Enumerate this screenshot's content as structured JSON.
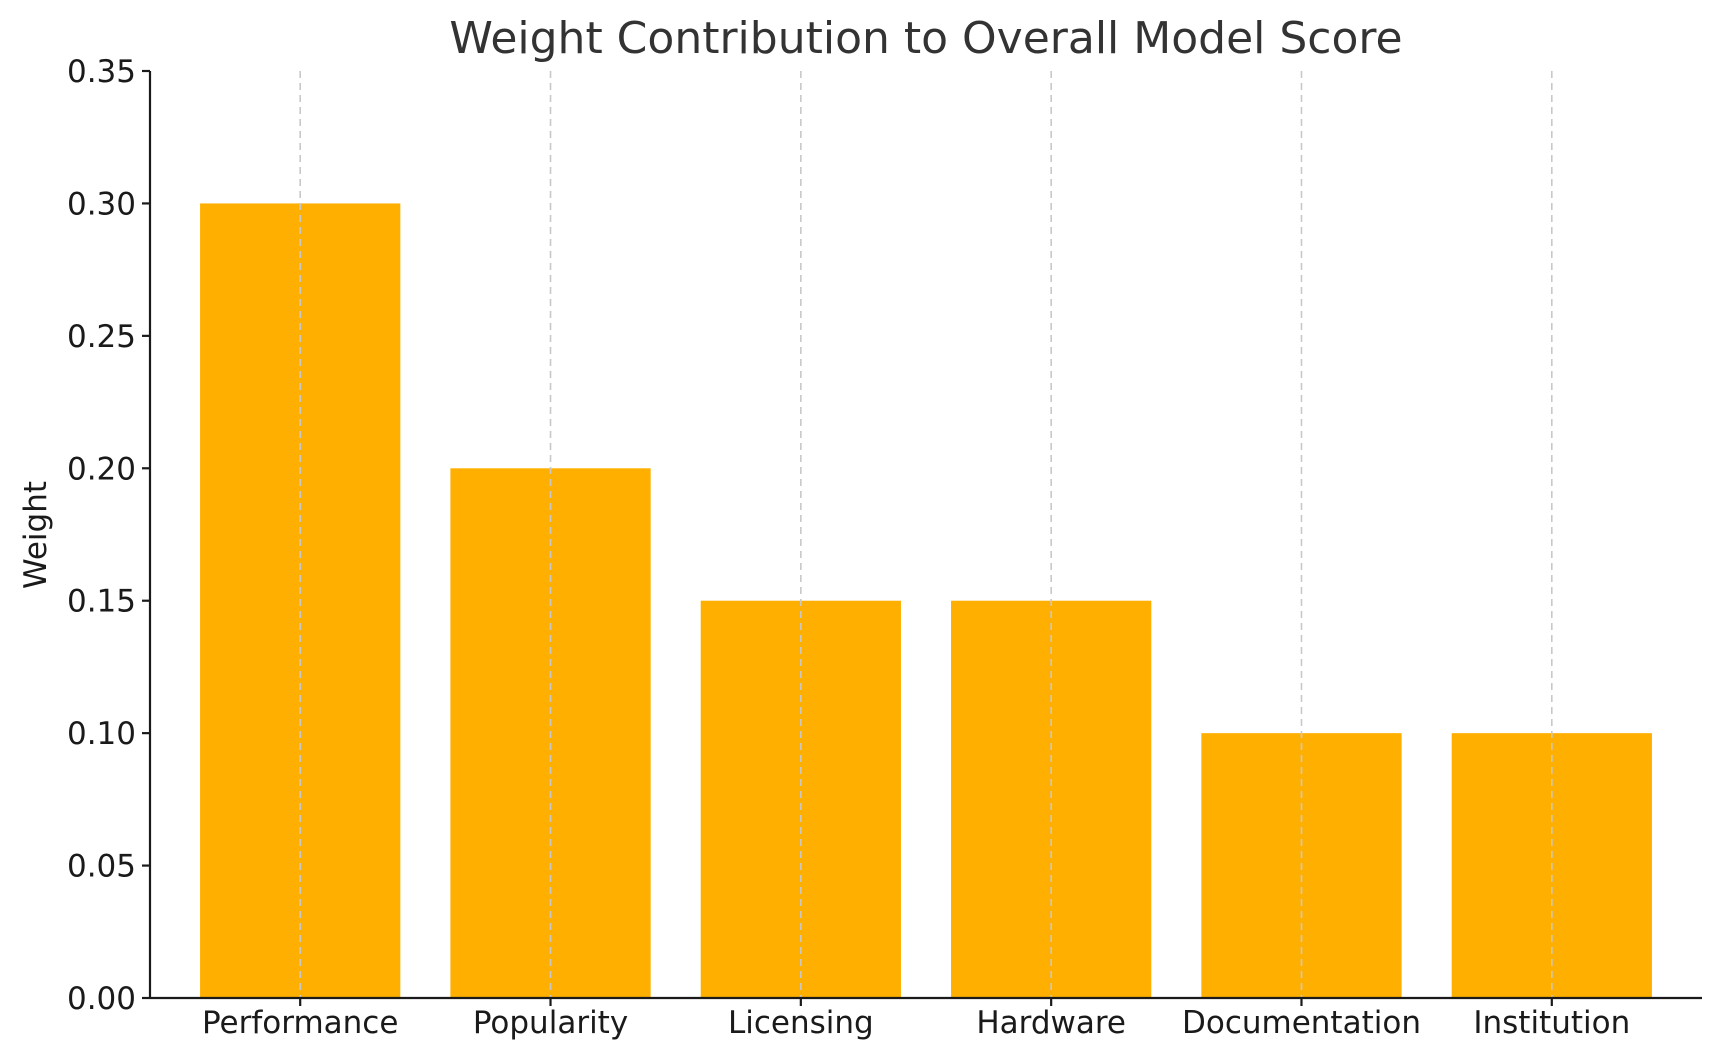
{
  "chart_data": {
    "type": "bar",
    "title": "Weight Contribution to Overall Model Score",
    "xlabel": "",
    "ylabel": "Weight",
    "categories": [
      "Performance",
      "Popularity",
      "Licensing",
      "Hardware",
      "Documentation",
      "Institution"
    ],
    "values": [
      0.3,
      0.2,
      0.15,
      0.15,
      0.1,
      0.1
    ],
    "ylim": [
      0,
      0.35
    ],
    "yticks": [
      "0.00",
      "0.05",
      "0.10",
      "0.15",
      "0.20",
      "0.25",
      "0.30",
      "0.35"
    ],
    "grid": "x-dashed",
    "bar_color": "#FFAF00",
    "legend": "none"
  }
}
